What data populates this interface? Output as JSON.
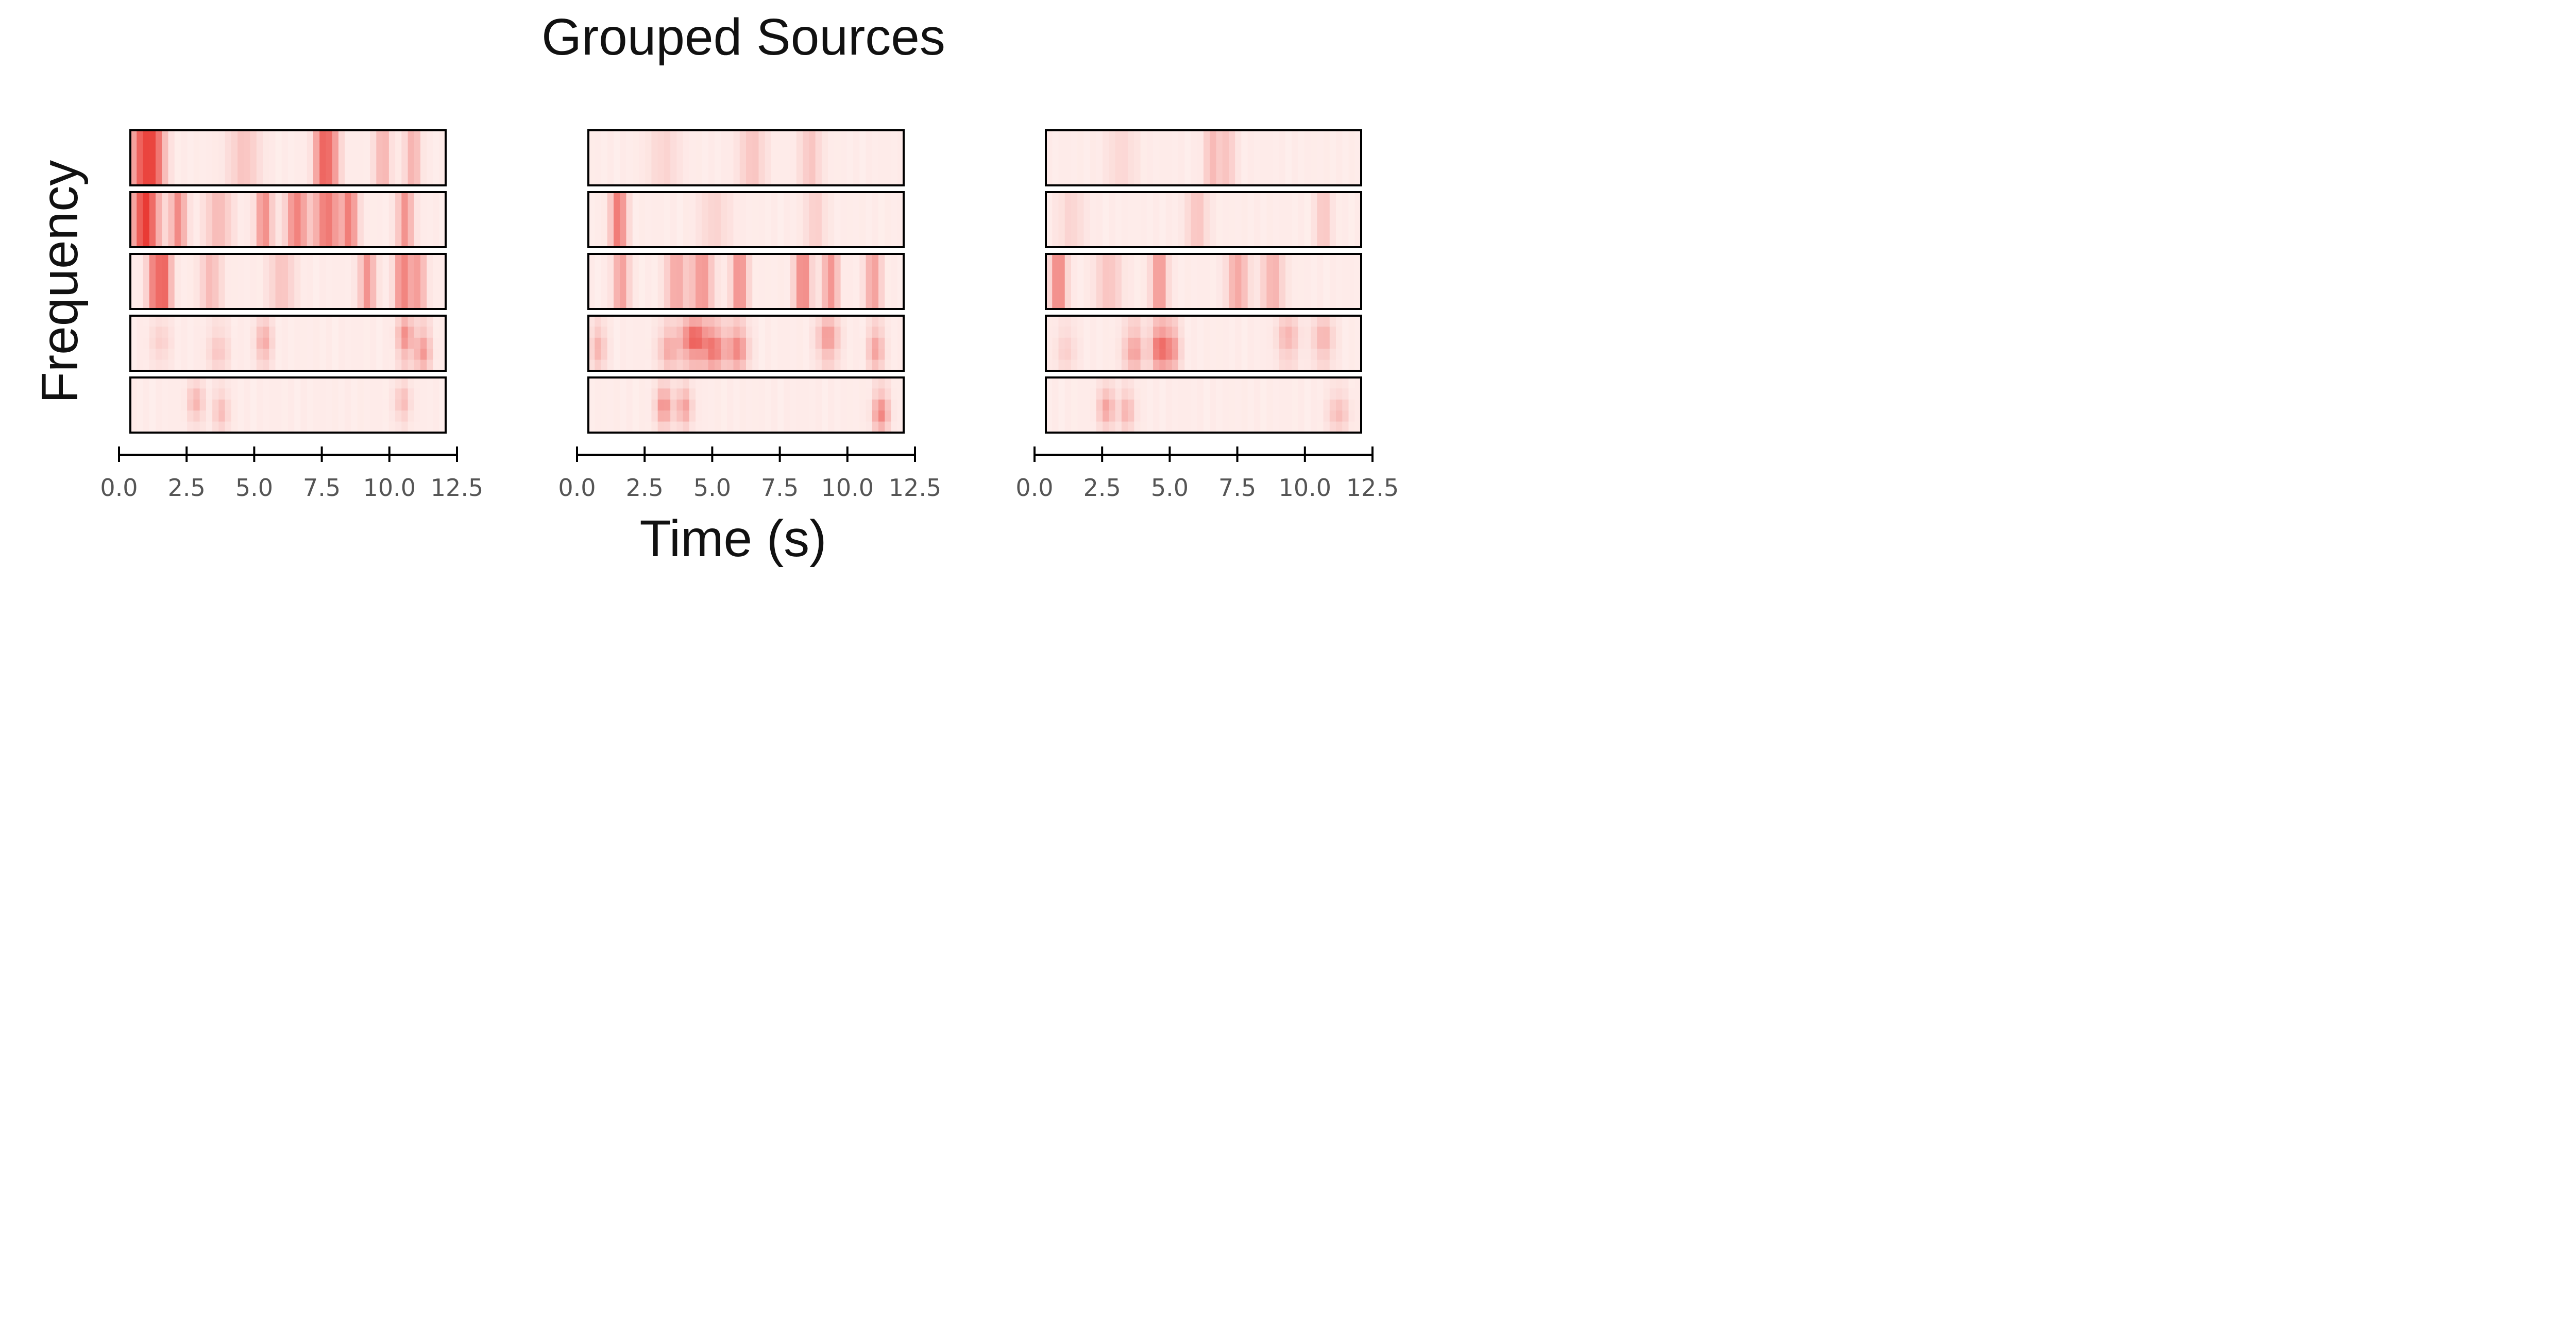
{
  "chart_data": {
    "type": "heatmap",
    "title": "Grouped Sources",
    "xlabel": "Time (s)",
    "ylabel": "Frequency",
    "x_range": [
      0,
      12.5
    ],
    "x_ticks": [
      "0.0",
      "2.5",
      "5.0",
      "7.5",
      "10.0",
      "12.5"
    ],
    "grid": false,
    "legend": "none",
    "colormap": {
      "low": "#fff5f3",
      "high": "#e8322c"
    },
    "n_time_bins": 50,
    "columns": [
      {
        "name": "",
        "rows": [
          {
            "peaks": [
              [
                0.5,
                0.7,
                0.5
              ],
              [
                1.0,
                0.5,
                0.4
              ],
              [
                7.6,
                0.6,
                0.3
              ],
              [
                8.0,
                0.45,
                0.3
              ],
              [
                10.0,
                0.3,
                0.3
              ],
              [
                11.2,
                0.3,
                0.3
              ],
              [
                4.5,
                0.2,
                0.6
              ]
            ],
            "vertical_spread": 0
          },
          {
            "peaks": [
              [
                0.6,
                0.9,
                0.5
              ],
              [
                1.9,
                0.5,
                0.3
              ],
              [
                5.3,
                0.5,
                0.3
              ],
              [
                6.6,
                0.55,
                0.4
              ],
              [
                7.8,
                0.6,
                0.5
              ],
              [
                8.7,
                0.55,
                0.3
              ],
              [
                10.9,
                0.45,
                0.3
              ],
              [
                3.5,
                0.25,
                0.5
              ]
            ],
            "vertical_spread": 0
          },
          {
            "peaks": [
              [
                1.0,
                0.6,
                0.3
              ],
              [
                1.4,
                0.55,
                0.25
              ],
              [
                3.2,
                0.25,
                0.4
              ],
              [
                9.4,
                0.45,
                0.3
              ],
              [
                10.8,
                0.55,
                0.3
              ],
              [
                11.4,
                0.4,
                0.3
              ],
              [
                6.0,
                0.2,
                0.5
              ]
            ],
            "vertical_spread": 0
          },
          {
            "peaks": [
              [
                3.5,
                0.2,
                0.4
              ],
              [
                5.3,
                0.35,
                0.3
              ],
              [
                10.9,
                0.5,
                0.3
              ],
              [
                11.6,
                0.45,
                0.3
              ],
              [
                1.2,
                0.15,
                0.4
              ]
            ],
            "vertical_spread": 0.7
          },
          {
            "peaks": [
              [
                2.6,
                0.3,
                0.3
              ],
              [
                3.6,
                0.25,
                0.3
              ],
              [
                10.8,
                0.25,
                0.3
              ]
            ],
            "vertical_spread": 0.8
          }
        ]
      },
      {
        "name": "",
        "rows": [
          {
            "peaks": [
              [
                6.5,
                0.2,
                0.5
              ],
              [
                8.8,
                0.2,
                0.4
              ],
              [
                3.0,
                0.12,
                0.6
              ]
            ],
            "vertical_spread": 0
          },
          {
            "peaks": [
              [
                1.2,
                0.6,
                0.3
              ],
              [
                9.0,
                0.15,
                0.4
              ],
              [
                5.0,
                0.12,
                0.6
              ]
            ],
            "vertical_spread": 0
          },
          {
            "peaks": [
              [
                1.3,
                0.4,
                0.3
              ],
              [
                3.5,
                0.35,
                0.4
              ],
              [
                4.5,
                0.45,
                0.4
              ],
              [
                6.0,
                0.5,
                0.3
              ],
              [
                8.5,
                0.55,
                0.3
              ],
              [
                9.6,
                0.45,
                0.3
              ],
              [
                11.3,
                0.4,
                0.3
              ]
            ],
            "vertical_spread": 0
          },
          {
            "peaks": [
              [
                3.2,
                0.35,
                0.4
              ],
              [
                4.2,
                0.75,
                0.5
              ],
              [
                5.0,
                0.6,
                0.4
              ],
              [
                5.9,
                0.55,
                0.4
              ],
              [
                9.5,
                0.45,
                0.4
              ],
              [
                11.4,
                0.4,
                0.3
              ],
              [
                0.4,
                0.3,
                0.3
              ]
            ],
            "vertical_spread": 0.7
          },
          {
            "peaks": [
              [
                3.0,
                0.5,
                0.3
              ],
              [
                3.8,
                0.4,
                0.3
              ],
              [
                11.6,
                0.55,
                0.3
              ]
            ],
            "vertical_spread": 0.8
          }
        ]
      },
      {
        "name": "",
        "rows": [
          {
            "peaks": [
              [
                6.6,
                0.25,
                0.3
              ],
              [
                7.2,
                0.2,
                0.3
              ],
              [
                3.0,
                0.1,
                0.6
              ]
            ],
            "vertical_spread": 0
          },
          {
            "peaks": [
              [
                6.0,
                0.2,
                0.4
              ],
              [
                11.0,
                0.2,
                0.3
              ],
              [
                1.0,
                0.12,
                0.5
              ]
            ],
            "vertical_spread": 0
          },
          {
            "peaks": [
              [
                0.5,
                0.55,
                0.3
              ],
              [
                4.5,
                0.45,
                0.3
              ],
              [
                7.6,
                0.35,
                0.4
              ],
              [
                9.0,
                0.3,
                0.4
              ],
              [
                2.5,
                0.2,
                0.5
              ]
            ],
            "vertical_spread": 0
          },
          {
            "peaks": [
              [
                3.5,
                0.4,
                0.4
              ],
              [
                4.5,
                0.7,
                0.3
              ],
              [
                5.0,
                0.5,
                0.3
              ],
              [
                9.6,
                0.3,
                0.4
              ],
              [
                11.0,
                0.3,
                0.4
              ],
              [
                0.8,
                0.15,
                0.4
              ]
            ],
            "vertical_spread": 0.65
          },
          {
            "peaks": [
              [
                2.4,
                0.4,
                0.3
              ],
              [
                3.2,
                0.3,
                0.3
              ],
              [
                11.6,
                0.25,
                0.4
              ]
            ],
            "vertical_spread": 0.8
          }
        ]
      }
    ]
  }
}
